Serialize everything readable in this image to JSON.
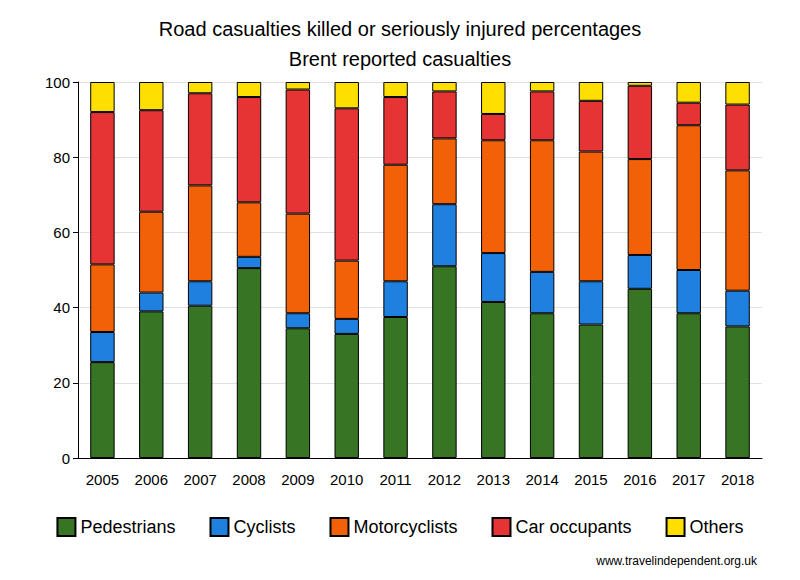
{
  "chart_data": {
    "type": "bar",
    "title": "Road casualties killed or seriously injured percentages",
    "subtitle": "Brent reported casualties",
    "annotation": "www.travelindependent.org.uk",
    "categories": [
      "2005",
      "2006",
      "2007",
      "2008",
      "2009",
      "2010",
      "2011",
      "2012",
      "2013",
      "2014",
      "2015",
      "2016",
      "2017",
      "2018"
    ],
    "series": [
      {
        "name": "Pedestrians",
        "color": "#377423",
        "values": [
          25.5,
          39,
          40.5,
          50.5,
          34.5,
          33,
          37.5,
          51,
          41.5,
          38.5,
          35.5,
          45,
          38.5,
          35
        ]
      },
      {
        "name": "Cyclists",
        "color": "#1f80e0",
        "values": [
          8,
          5,
          6.5,
          3,
          4,
          4,
          9.5,
          16.5,
          13,
          11,
          11.5,
          9,
          11.5,
          9.5
        ]
      },
      {
        "name": "Motorcyclists",
        "color": "#f26108",
        "values": [
          18,
          21.5,
          25.5,
          14.5,
          26.5,
          15.5,
          31,
          17.5,
          30,
          35,
          34.5,
          25.5,
          38.5,
          32
        ]
      },
      {
        "name": "Car occupants",
        "color": "#e63333",
        "values": [
          40.5,
          27,
          24.5,
          28,
          33,
          40.5,
          18,
          12.5,
          7,
          13,
          13.5,
          19.5,
          6,
          17.5
        ]
      },
      {
        "name": "Others",
        "color": "#ffdf00",
        "values": [
          8,
          7.5,
          3,
          4,
          2,
          7,
          4,
          2.5,
          8.5,
          2.5,
          5,
          1,
          5.5,
          6
        ]
      }
    ],
    "ylim": [
      0,
      100
    ],
    "yticks": [
      0,
      20,
      40,
      60,
      80,
      100
    ],
    "stacked": true,
    "grid": true,
    "legend": "bottom"
  }
}
